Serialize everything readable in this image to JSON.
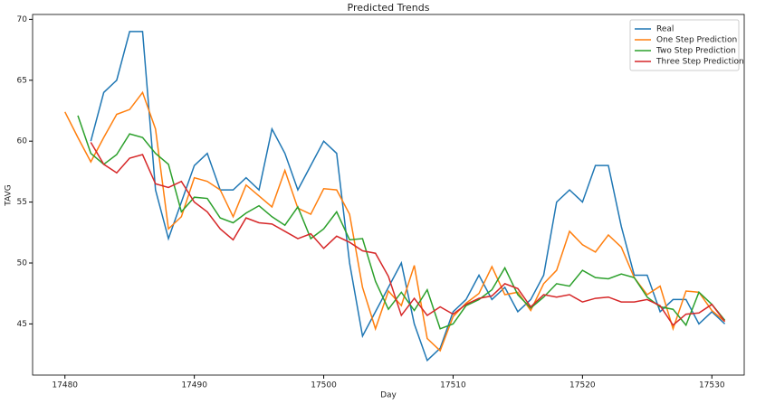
{
  "chart_data": {
    "type": "line",
    "title": "Predicted Trends",
    "x_label": "Day",
    "y_label": "TAVG",
    "x": [
      17480,
      17481,
      17482,
      17483,
      17484,
      17485,
      17486,
      17487,
      17488,
      17489,
      17490,
      17491,
      17492,
      17493,
      17494,
      17495,
      17496,
      17497,
      17498,
      17499,
      17500,
      17501,
      17502,
      17503,
      17504,
      17505,
      17506,
      17507,
      17508,
      17509,
      17510,
      17511,
      17512,
      17513,
      17514,
      17515,
      17516,
      17517,
      17518,
      17519,
      17520,
      17521,
      17522,
      17523,
      17524,
      17525,
      17526,
      17527,
      17528,
      17529,
      17530,
      17531
    ],
    "series": [
      {
        "name": "Real",
        "color": "#1f77b4",
        "values": [
          null,
          null,
          60,
          64,
          65,
          69,
          69,
          56,
          52,
          55,
          58,
          59,
          56,
          56,
          57,
          56,
          61,
          59,
          56,
          58,
          60,
          59,
          50,
          44,
          46,
          48,
          50,
          45,
          42,
          43,
          46,
          47,
          49,
          47,
          48,
          46,
          47,
          49,
          55,
          56,
          55,
          58,
          58,
          53,
          49,
          49,
          46,
          47,
          47,
          45,
          46,
          45
        ]
      },
      {
        "name": "One Step Prediction",
        "color": "#ff7f0e",
        "values": [
          62.4,
          60.3,
          58.3,
          60.3,
          62.2,
          62.6,
          64,
          61,
          52.8,
          53.8,
          57,
          56.7,
          56,
          53.8,
          56.4,
          55.5,
          54.6,
          57.6,
          54.5,
          54,
          56.1,
          56,
          54,
          48,
          44.6,
          47.7,
          46.5,
          49.8,
          43.8,
          42.8,
          45.6,
          46.7,
          47.5,
          49.7,
          47.4,
          47.6,
          46.1,
          48.3,
          49.4,
          52.6,
          51.5,
          50.9,
          52.3,
          51.3,
          48.8,
          47.4,
          48.1,
          44.6,
          47.7,
          47.6,
          46.1,
          45.2
        ]
      },
      {
        "name": "Two Step Prediction",
        "color": "#2ca02c",
        "values": [
          null,
          62.1,
          59,
          58.1,
          58.9,
          60.6,
          60.3,
          59,
          58.1,
          54.2,
          55.4,
          55.3,
          53.7,
          53.3,
          54.1,
          54.7,
          53.8,
          53.1,
          54.6,
          52,
          52.8,
          54.2,
          51.9,
          52,
          48.5,
          46.2,
          47.6,
          46.1,
          47.8,
          44.6,
          45,
          46.5,
          47,
          47.8,
          49.6,
          47.4,
          46.3,
          47.2,
          48.3,
          48.1,
          49.4,
          48.8,
          48.7,
          49.1,
          48.8,
          47.2,
          46.4,
          46.2,
          44.9,
          47.6,
          46.6,
          45.3
        ]
      },
      {
        "name": "Three Step Prediction",
        "color": "#d62728",
        "values": [
          null,
          null,
          59.9,
          58.1,
          57.4,
          58.6,
          58.9,
          56.5,
          56.2,
          56.7,
          55,
          54.2,
          52.8,
          51.9,
          53.7,
          53.3,
          53.2,
          52.6,
          52,
          52.4,
          51.2,
          52.2,
          51.7,
          51,
          50.8,
          48.9,
          45.7,
          47.1,
          45.7,
          46.4,
          45.8,
          46.6,
          47.1,
          47.3,
          48.3,
          47.9,
          46.4,
          47.4,
          47.2,
          47.4,
          46.8,
          47.1,
          47.2,
          46.8,
          46.8,
          47,
          46.5,
          44.9,
          45.8,
          45.9,
          46.6,
          45.2
        ]
      }
    ],
    "xlim": [
      17477.5,
      17532.5
    ],
    "ylim": [
      40.8,
      70.4
    ],
    "xticks": [
      17480,
      17490,
      17500,
      17510,
      17520,
      17530
    ],
    "yticks": [
      45,
      50,
      55,
      60,
      65,
      70
    ],
    "legend": "upper right"
  }
}
